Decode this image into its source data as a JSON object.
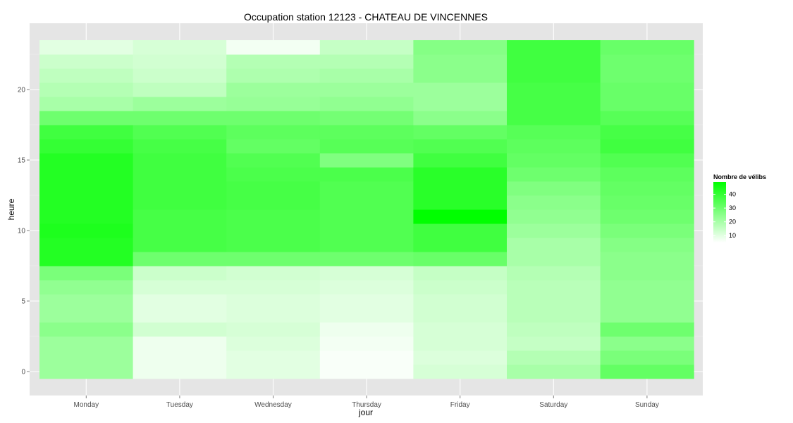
{
  "chart_data": {
    "type": "heatmap",
    "title": "Occupation station 12123 - CHATEAU DE VINCENNES",
    "xlabel": "jour",
    "ylabel": "heure",
    "categories": [
      "Monday",
      "Tuesday",
      "Wednesday",
      "Thursday",
      "Friday",
      "Saturday",
      "Sunday"
    ],
    "hours": [
      0,
      1,
      2,
      3,
      4,
      5,
      6,
      7,
      8,
      9,
      10,
      11,
      12,
      13,
      14,
      15,
      16,
      17,
      18,
      19,
      20,
      21,
      22,
      23
    ],
    "y_ticks": [
      0,
      5,
      10,
      15,
      20
    ],
    "ylim": [
      -0.5,
      23.5
    ],
    "values": [
      [
        22,
        8,
        10,
        6,
        12,
        20,
        32
      ],
      [
        22,
        8,
        10,
        6,
        11,
        18,
        28
      ],
      [
        22,
        8,
        11,
        7,
        12,
        15,
        25
      ],
      [
        25,
        13,
        12,
        8,
        12,
        16,
        30
      ],
      [
        22,
        10,
        11,
        10,
        13,
        17,
        24
      ],
      [
        22,
        10,
        11,
        10,
        13,
        17,
        24
      ],
      [
        24,
        12,
        12,
        11,
        14,
        17,
        24
      ],
      [
        28,
        14,
        13,
        12,
        15,
        18,
        25
      ],
      [
        43,
        30,
        30,
        30,
        31,
        20,
        25
      ],
      [
        43,
        37,
        36,
        35,
        38,
        20,
        26
      ],
      [
        44,
        37,
        36,
        35,
        38,
        22,
        28
      ],
      [
        43,
        37,
        36,
        35,
        49,
        24,
        30
      ],
      [
        43,
        38,
        37,
        35,
        42,
        25,
        31
      ],
      [
        43,
        38,
        37,
        35,
        42,
        27,
        32
      ],
      [
        43,
        38,
        36,
        36,
        42,
        30,
        33
      ],
      [
        43,
        38,
        35,
        27,
        38,
        32,
        35
      ],
      [
        40,
        37,
        32,
        34,
        35,
        33,
        38
      ],
      [
        38,
        35,
        33,
        33,
        32,
        34,
        37
      ],
      [
        30,
        30,
        30,
        29,
        25,
        37,
        34
      ],
      [
        20,
        22,
        23,
        24,
        22,
        37,
        31
      ],
      [
        18,
        16,
        22,
        22,
        22,
        37,
        31
      ],
      [
        16,
        14,
        19,
        20,
        25,
        38,
        30
      ],
      [
        14,
        13,
        18,
        18,
        25,
        38,
        30
      ],
      [
        10,
        12,
        7,
        15,
        26,
        38,
        31
      ]
    ],
    "legend": {
      "title": "Nombre de vélibs",
      "ticks": [
        10,
        20,
        30,
        40
      ],
      "range": [
        5,
        49
      ],
      "low_color": "#ffffff",
      "high_color": "#00ff00",
      "placement": "right"
    },
    "panel_bg": "#e5e5e5",
    "grid": true
  }
}
